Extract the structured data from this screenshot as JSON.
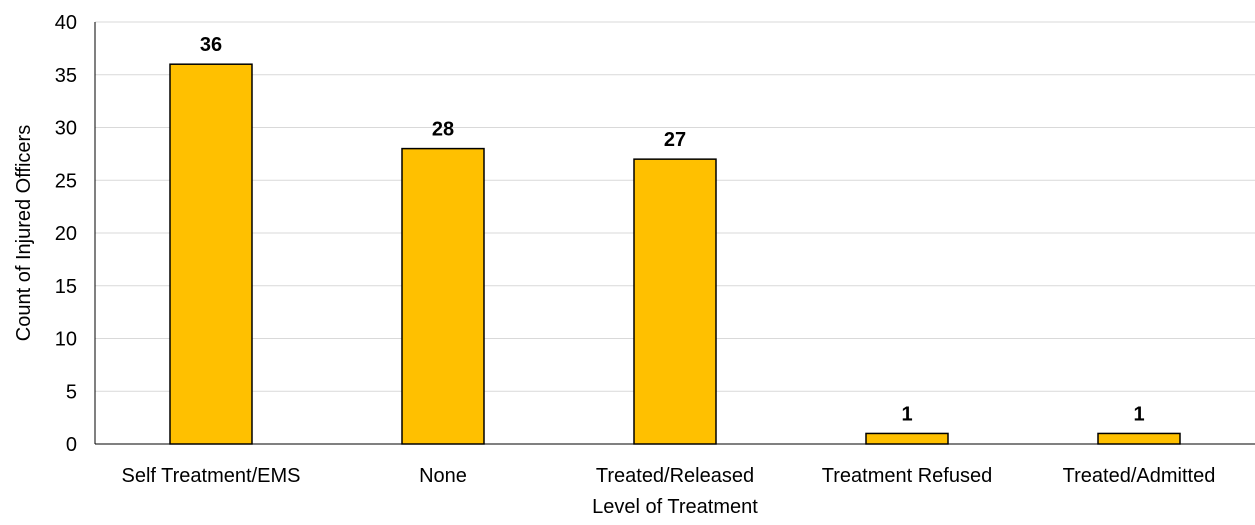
{
  "chart_data": {
    "type": "bar",
    "categories": [
      "Self Treatment/EMS",
      "None",
      "Treated/Released",
      "Treatment Refused",
      "Treated/Admitted"
    ],
    "values": [
      36,
      28,
      27,
      1,
      1
    ],
    "data_labels": [
      "36",
      "28",
      "27",
      "1",
      "1"
    ],
    "title": "",
    "xlabel": "Level of Treatment",
    "ylabel": "Count of Injured Officers",
    "ylim": [
      0,
      40
    ],
    "yticks": [
      0,
      5,
      10,
      15,
      20,
      25,
      30,
      35,
      40
    ],
    "grid": true,
    "legend": "none",
    "bar_color": "#FFC000",
    "bar_edge_color": "#000000",
    "grid_color": "#D9D9D9"
  }
}
